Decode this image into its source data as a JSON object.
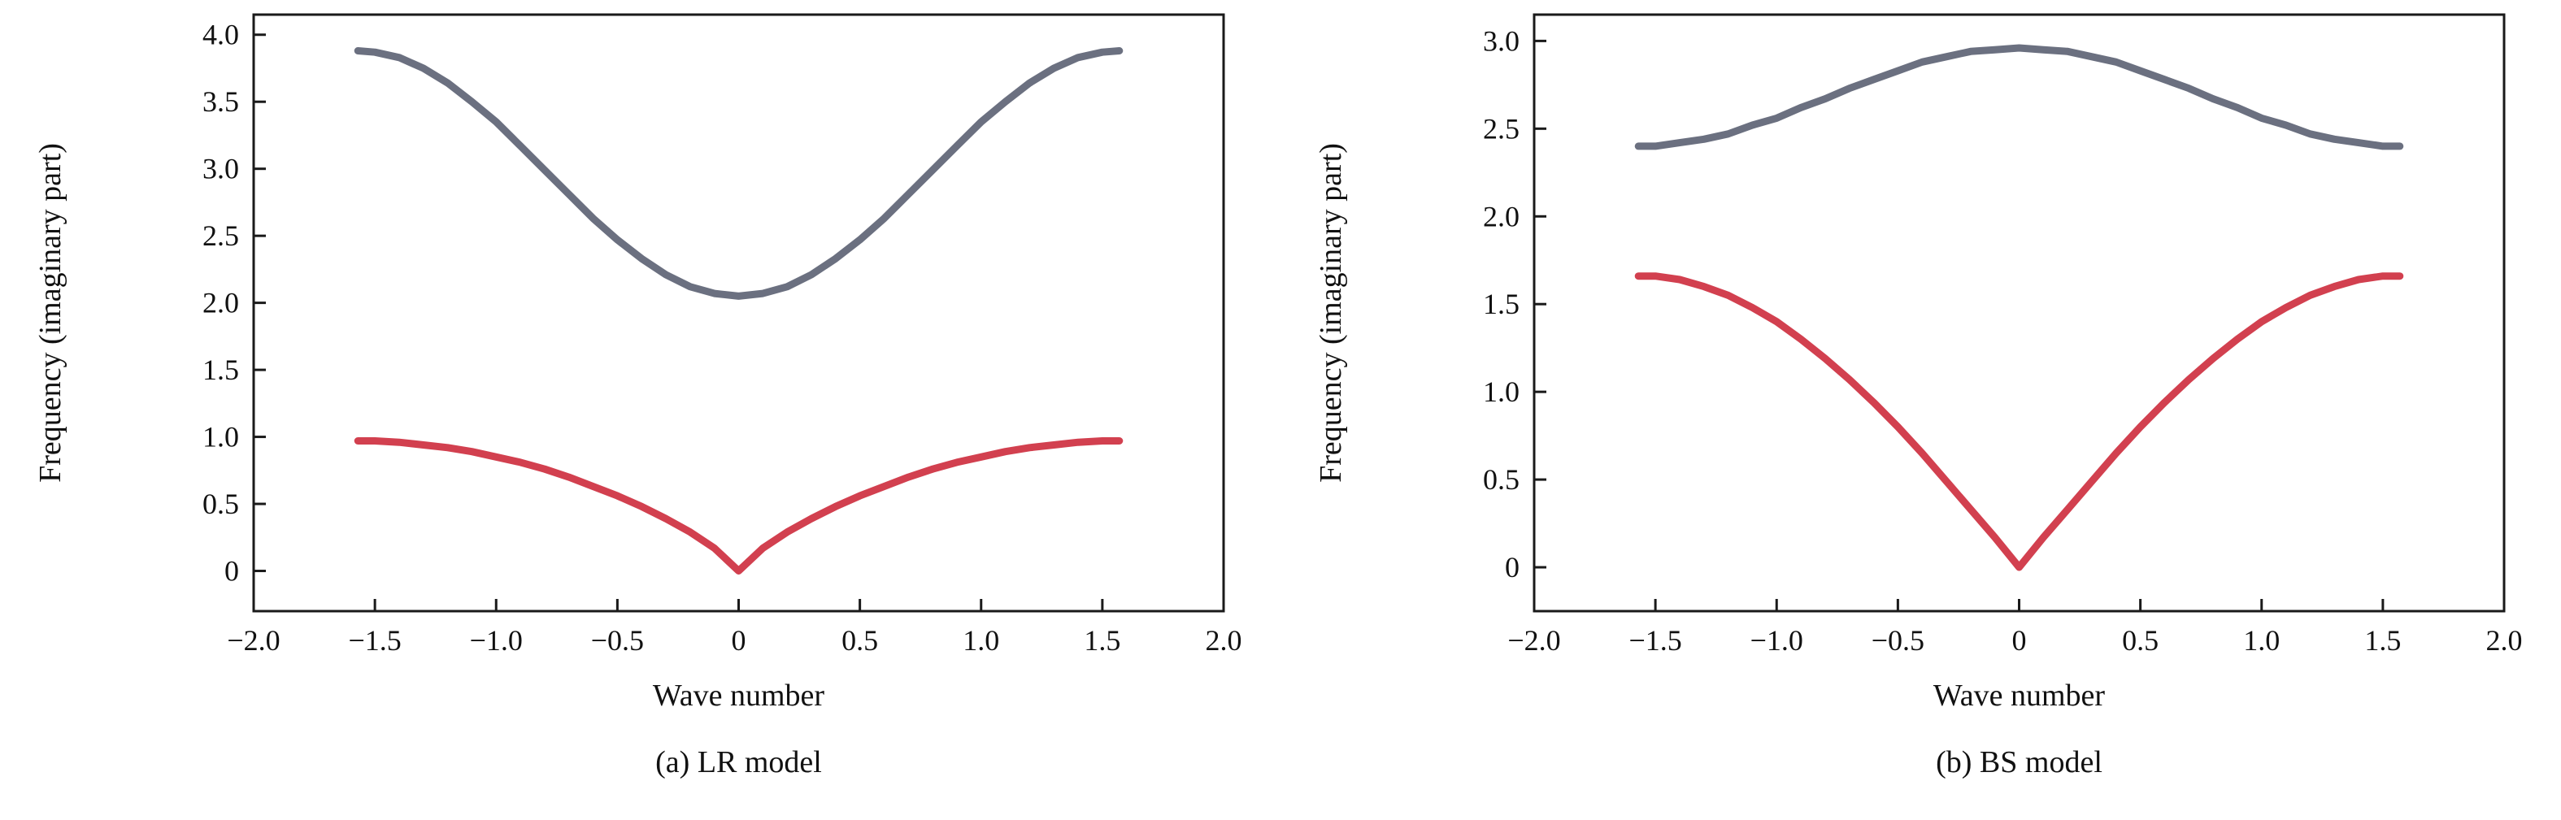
{
  "figure": {
    "background": "#ffffff",
    "frame_color": "#1a1a1a",
    "upper_branch_color": "#6b7080",
    "lower_branch_color": "#d2404f"
  },
  "chart_data": [
    {
      "type": "line",
      "caption": "(a) LR model",
      "xlabel": "Wave number",
      "ylabel": "Frequency (imaginary part)",
      "xlim": [
        -2.0,
        2.0
      ],
      "ylim": [
        -0.3,
        4.15
      ],
      "grid": false,
      "legend": "none",
      "xtick_values": [
        -2.0,
        -1.5,
        -1.0,
        -0.5,
        0,
        0.5,
        1.0,
        1.5,
        2.0
      ],
      "xtick_labels": [
        "−2.0",
        "−1.5",
        "−1.0",
        "−0.5",
        "0",
        "0.5",
        "1.0",
        "1.5",
        "2.0"
      ],
      "ytick_values": [
        0,
        0.5,
        1.0,
        1.5,
        2.0,
        2.5,
        3.0,
        3.5,
        4.0
      ],
      "ytick_labels": [
        "0",
        "0.5",
        "1.0",
        "1.5",
        "2.0",
        "2.5",
        "3.0",
        "3.5",
        "4.0"
      ],
      "x": [
        -1.57,
        -1.5,
        -1.4,
        -1.3,
        -1.2,
        -1.1,
        -1.0,
        -0.9,
        -0.8,
        -0.7,
        -0.6,
        -0.5,
        -0.4,
        -0.3,
        -0.2,
        -0.1,
        0,
        0.1,
        0.2,
        0.3,
        0.4,
        0.5,
        0.6,
        0.7,
        0.8,
        0.9,
        1.0,
        1.1,
        1.2,
        1.3,
        1.4,
        1.5,
        1.57
      ],
      "series": [
        {
          "name": "upper-branch",
          "color": "#6b7080",
          "values": [
            3.88,
            3.87,
            3.83,
            3.75,
            3.64,
            3.5,
            3.35,
            3.17,
            2.99,
            2.81,
            2.63,
            2.47,
            2.33,
            2.21,
            2.12,
            2.07,
            2.05,
            2.07,
            2.12,
            2.21,
            2.33,
            2.47,
            2.63,
            2.81,
            2.99,
            3.17,
            3.35,
            3.5,
            3.64,
            3.75,
            3.83,
            3.87,
            3.88
          ]
        },
        {
          "name": "lower-branch",
          "color": "#d2404f",
          "values": [
            0.97,
            0.97,
            0.96,
            0.94,
            0.92,
            0.89,
            0.85,
            0.81,
            0.76,
            0.7,
            0.63,
            0.56,
            0.48,
            0.39,
            0.29,
            0.17,
            0.0,
            0.17,
            0.29,
            0.39,
            0.48,
            0.56,
            0.63,
            0.7,
            0.76,
            0.81,
            0.85,
            0.89,
            0.92,
            0.94,
            0.96,
            0.97,
            0.97
          ]
        }
      ]
    },
    {
      "type": "line",
      "caption": "(b) BS model",
      "xlabel": "Wave number",
      "ylabel": "Frequency (imaginary part)",
      "xlim": [
        -2.0,
        2.0
      ],
      "ylim": [
        -0.25,
        3.15
      ],
      "grid": false,
      "legend": "none",
      "xtick_values": [
        -2.0,
        -1.5,
        -1.0,
        -0.5,
        0,
        0.5,
        1.0,
        1.5,
        2.0
      ],
      "xtick_labels": [
        "−2.0",
        "−1.5",
        "−1.0",
        "−0.5",
        "0",
        "0.5",
        "1.0",
        "1.5",
        "2.0"
      ],
      "ytick_values": [
        0,
        0.5,
        1.0,
        1.5,
        2.0,
        2.5,
        3.0
      ],
      "ytick_labels": [
        "0",
        "0.5",
        "1.0",
        "1.5",
        "2.0",
        "2.5",
        "3.0"
      ],
      "x": [
        -1.57,
        -1.5,
        -1.4,
        -1.3,
        -1.2,
        -1.1,
        -1.0,
        -0.9,
        -0.8,
        -0.7,
        -0.6,
        -0.5,
        -0.4,
        -0.3,
        -0.2,
        -0.1,
        0,
        0.1,
        0.2,
        0.3,
        0.4,
        0.5,
        0.6,
        0.7,
        0.8,
        0.9,
        1.0,
        1.1,
        1.2,
        1.3,
        1.4,
        1.5,
        1.57
      ],
      "series": [
        {
          "name": "upper-branch",
          "color": "#6b7080",
          "values": [
            2.4,
            2.4,
            2.42,
            2.44,
            2.47,
            2.52,
            2.56,
            2.62,
            2.67,
            2.73,
            2.78,
            2.83,
            2.88,
            2.91,
            2.94,
            2.95,
            2.96,
            2.95,
            2.94,
            2.91,
            2.88,
            2.83,
            2.78,
            2.73,
            2.67,
            2.62,
            2.56,
            2.52,
            2.47,
            2.44,
            2.42,
            2.4,
            2.4
          ]
        },
        {
          "name": "lower-branch",
          "color": "#d2404f",
          "values": [
            1.66,
            1.66,
            1.64,
            1.6,
            1.55,
            1.48,
            1.4,
            1.3,
            1.19,
            1.07,
            0.94,
            0.8,
            0.65,
            0.49,
            0.33,
            0.17,
            0.0,
            0.17,
            0.33,
            0.49,
            0.65,
            0.8,
            0.94,
            1.07,
            1.19,
            1.3,
            1.4,
            1.48,
            1.55,
            1.6,
            1.64,
            1.66,
            1.66
          ]
        }
      ]
    }
  ]
}
